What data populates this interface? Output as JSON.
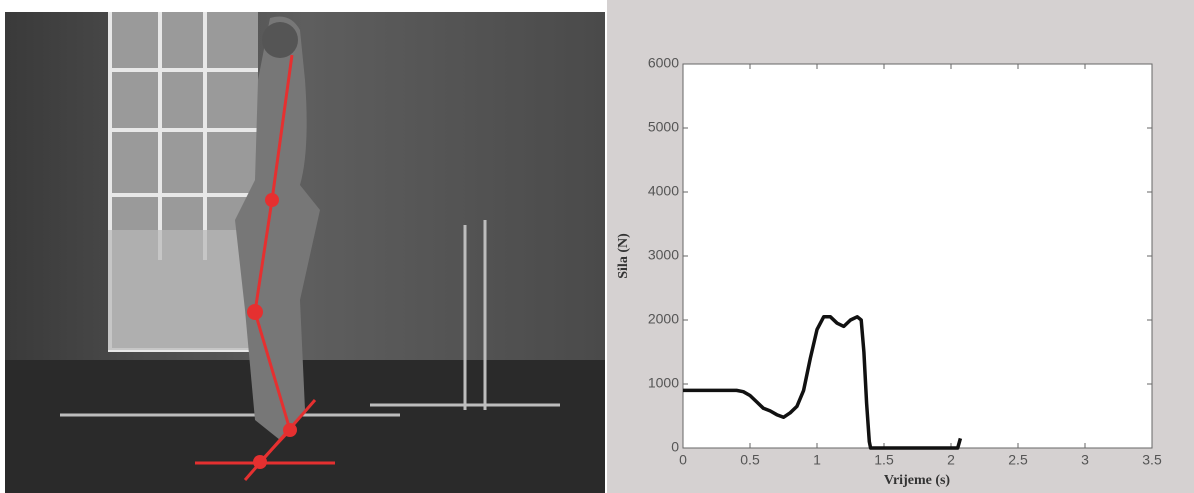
{
  "chart_data": {
    "type": "line",
    "xlabel": "Vrijeme (s)",
    "ylabel": "Sila (N)",
    "x": [
      0,
      0.1,
      0.2,
      0.3,
      0.4,
      0.45,
      0.5,
      0.55,
      0.6,
      0.65,
      0.7,
      0.75,
      0.8,
      0.85,
      0.9,
      0.95,
      1.0,
      1.05,
      1.1,
      1.15,
      1.2,
      1.25,
      1.3,
      1.33,
      1.35,
      1.37,
      1.39,
      1.4,
      1.5,
      1.7,
      1.9,
      2.0,
      2.05,
      2.07
    ],
    "values": [
      900,
      900,
      900,
      900,
      900,
      880,
      820,
      720,
      620,
      580,
      520,
      480,
      550,
      650,
      900,
      1400,
      1850,
      2050,
      2050,
      1950,
      1900,
      2000,
      2050,
      2000,
      1500,
      700,
      100,
      0,
      0,
      0,
      0,
      0,
      0,
      150
    ],
    "color": "#111111",
    "xlim": [
      0,
      3.5
    ],
    "xticks": [
      0,
      0.5,
      1,
      1.5,
      2,
      2.5,
      3,
      3.5
    ],
    "ylim": [
      0,
      6000
    ],
    "yticks": [
      0,
      1000,
      2000,
      3000,
      4000,
      5000,
      6000
    ],
    "grid": false
  }
}
